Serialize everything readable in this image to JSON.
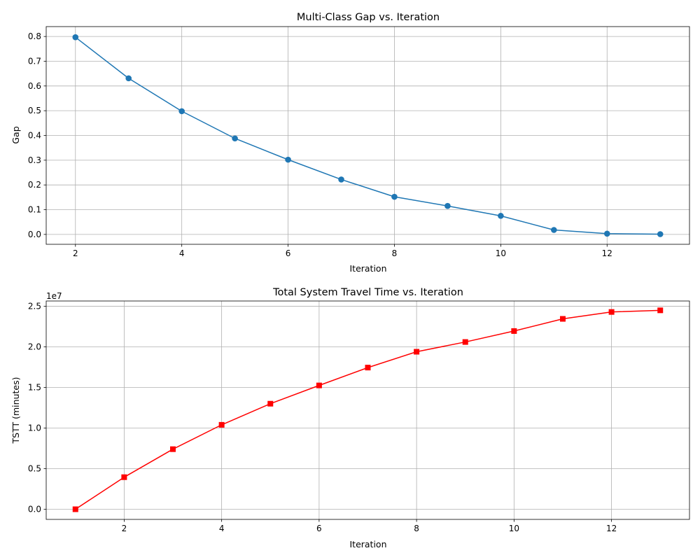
{
  "chart_data": [
    {
      "type": "line",
      "title": "Multi-Class Gap vs. Iteration",
      "xlabel": "Iteration",
      "ylabel": "Gap",
      "xlim": [
        1.45,
        13.55
      ],
      "ylim": [
        -0.04,
        0.84
      ],
      "xticks": [
        2,
        4,
        6,
        8,
        10,
        12
      ],
      "xtick_labels": [
        "2",
        "4",
        "6",
        "8",
        "10",
        "12"
      ],
      "yticks": [
        0,
        0.1,
        0.2,
        0.3,
        0.4,
        0.5,
        0.6,
        0.7,
        0.8
      ],
      "ytick_labels": [
        "0.0",
        "0.1",
        "0.2",
        "0.3",
        "0.4",
        "0.5",
        "0.6",
        "0.7",
        "0.8"
      ],
      "grid": true,
      "marker": "circle",
      "series": [
        {
          "color": "#1f77b4",
          "x": [
            2,
            3,
            4,
            5,
            6,
            7,
            8,
            9,
            10,
            11,
            12,
            13
          ],
          "y": [
            0.797,
            0.631,
            0.498,
            0.388,
            0.302,
            0.222,
            0.152,
            0.115,
            0.075,
            0.018,
            0.003,
            0.001
          ]
        }
      ]
    },
    {
      "type": "line",
      "title": "Total System Travel Time vs. Iteration",
      "xlabel": "Iteration",
      "ylabel": "TSTT (minutes)",
      "y_offset_label": "1e7",
      "xlim": [
        0.4,
        13.6
      ],
      "ylim": [
        -1.25,
        25.65
      ],
      "xticks": [
        2,
        4,
        6,
        8,
        10,
        12
      ],
      "xtick_labels": [
        "2",
        "4",
        "6",
        "8",
        "10",
        "12"
      ],
      "yticks": [
        0,
        5,
        10,
        15,
        20,
        25
      ],
      "ytick_labels": [
        "0.0",
        "0.5",
        "1.0",
        "1.5",
        "2.0",
        "2.5"
      ],
      "grid": true,
      "marker": "square",
      "series": [
        {
          "color": "#ff0000",
          "x": [
            1,
            2,
            3,
            4,
            5,
            6,
            7,
            8,
            9,
            10,
            11,
            12,
            13
          ],
          "y": [
            0.0,
            3.95,
            7.4,
            10.4,
            13.0,
            15.25,
            17.45,
            19.4,
            20.6,
            21.95,
            23.45,
            24.3,
            24.5
          ]
        }
      ]
    }
  ]
}
